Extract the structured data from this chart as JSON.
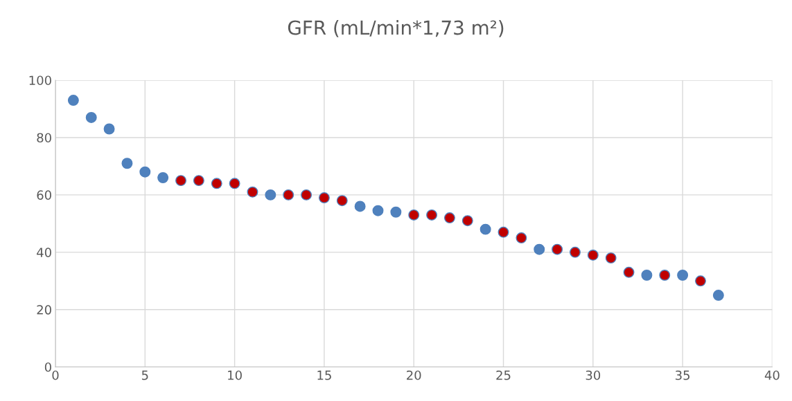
{
  "chart_data": {
    "type": "scatter",
    "title": "GFR (mL/min*1,73 m²)",
    "series": [
      {
        "color": "#4f81bd",
        "x": [
          1,
          2,
          3,
          4,
          5,
          6,
          12,
          17,
          18,
          19,
          24,
          27,
          33,
          35,
          37
        ],
        "values": [
          93,
          87,
          83,
          71,
          68,
          66,
          60,
          56,
          54.5,
          54,
          48,
          41,
          32,
          32,
          25
        ]
      },
      {
        "color": "#c00000",
        "x": [
          7,
          8,
          9,
          10,
          11,
          13,
          14,
          15,
          16,
          20,
          21,
          22,
          23,
          25,
          26,
          28,
          29,
          30,
          31,
          32,
          34,
          36
        ],
        "values": [
          65,
          65,
          64,
          64,
          61,
          60,
          60,
          59,
          58,
          53,
          53,
          52,
          51,
          47,
          45,
          41,
          40,
          39,
          38,
          33,
          32,
          30
        ]
      }
    ],
    "xlim": [
      0,
      40
    ],
    "xticks": [
      0,
      5,
      10,
      15,
      20,
      25,
      30,
      35,
      40
    ],
    "ylim": [
      0,
      100
    ],
    "yticks": [
      0,
      20,
      40,
      60,
      80,
      100
    ],
    "grid": true,
    "marker": "circle",
    "legend": false
  }
}
